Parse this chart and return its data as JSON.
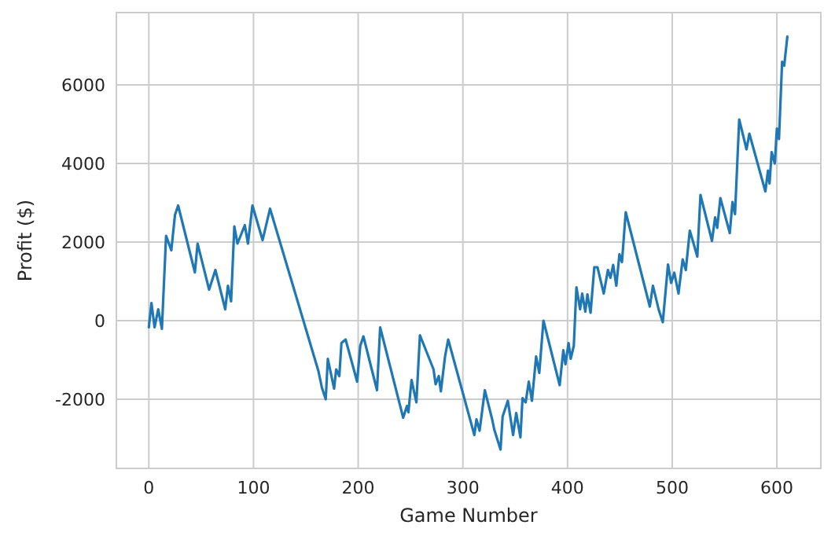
{
  "chart_data": {
    "type": "line",
    "xlabel": "Game Number",
    "ylabel": "Profit ($)",
    "xlim": [
      -31,
      642
    ],
    "ylim": [
      -3760,
      7840
    ],
    "xticks": [
      0,
      100,
      200,
      300,
      400,
      500,
      600
    ],
    "yticks": [
      -2000,
      0,
      2000,
      4000,
      6000
    ],
    "grid": true,
    "marker": "none",
    "line_style": "solid",
    "x": [
      0,
      2.5,
      5.5,
      9,
      12.5,
      16.5,
      21.5,
      25,
      28,
      44,
      46.6,
      57.6,
      63.6,
      73,
      75.6,
      78.6,
      81.7,
      84.7,
      91.7,
      94.7,
      99,
      108.7,
      115.8,
      162,
      165.4,
      169,
      171,
      177,
      179,
      182,
      184,
      188,
      199,
      202,
      205,
      218,
      221,
      243,
      246.6,
      248,
      251,
      255.6,
      259,
      272,
      274,
      277,
      279,
      283,
      286,
      311,
      313,
      316,
      321,
      328,
      330,
      336,
      338,
      343,
      348,
      351,
      355,
      357,
      360,
      363,
      366,
      370,
      373,
      377,
      392.5,
      396,
      398,
      401,
      403,
      406,
      408.5,
      412,
      414,
      417,
      419,
      422,
      425.6,
      428.6,
      434.6,
      438.6,
      441,
      443.6,
      446.6,
      449.6,
      452,
      455.6,
      478.6,
      481.6,
      487,
      491,
      496,
      499,
      502,
      506,
      510,
      513,
      516.8,
      519.8,
      524,
      527,
      538,
      541,
      543,
      546,
      555,
      557.6,
      560,
      564,
      571,
      573.7,
      589,
      591.5,
      593,
      595,
      598,
      600,
      602,
      605,
      607,
      610
    ],
    "series": [
      {
        "color": "#1f77b4",
        "values": [
          -170,
          450,
          -170,
          290,
          -210,
          2160,
          1790,
          2690,
          2930,
          1230,
          1960,
          790,
          1290,
          290,
          890,
          490,
          2400,
          1960,
          2430,
          1960,
          2930,
          2050,
          2850,
          -1280,
          -1710,
          -2000,
          -970,
          -1730,
          -1240,
          -1410,
          -570,
          -480,
          -1550,
          -640,
          -400,
          -1770,
          -170,
          -2470,
          -2170,
          -2330,
          -1510,
          -2080,
          -370,
          -1240,
          -1620,
          -1410,
          -1800,
          -910,
          -480,
          -2910,
          -2510,
          -2800,
          -1770,
          -2510,
          -2770,
          -3280,
          -2440,
          -2040,
          -2910,
          -2350,
          -2970,
          -1970,
          -2080,
          -1550,
          -2040,
          -910,
          -1330,
          0,
          -1640,
          -750,
          -1110,
          -570,
          -970,
          -640,
          850,
          290,
          690,
          230,
          670,
          200,
          1360,
          1360,
          690,
          1290,
          1090,
          1420,
          890,
          1690,
          1490,
          2760,
          360,
          890,
          290,
          -40,
          1430,
          960,
          1220,
          690,
          1560,
          1290,
          2290,
          2020,
          1630,
          3200,
          2030,
          2630,
          2360,
          3120,
          2230,
          3020,
          2710,
          5120,
          4360,
          4760,
          3290,
          3820,
          3490,
          4290,
          4000,
          4890,
          4620,
          6590,
          6490,
          7230
        ]
      }
    ]
  }
}
